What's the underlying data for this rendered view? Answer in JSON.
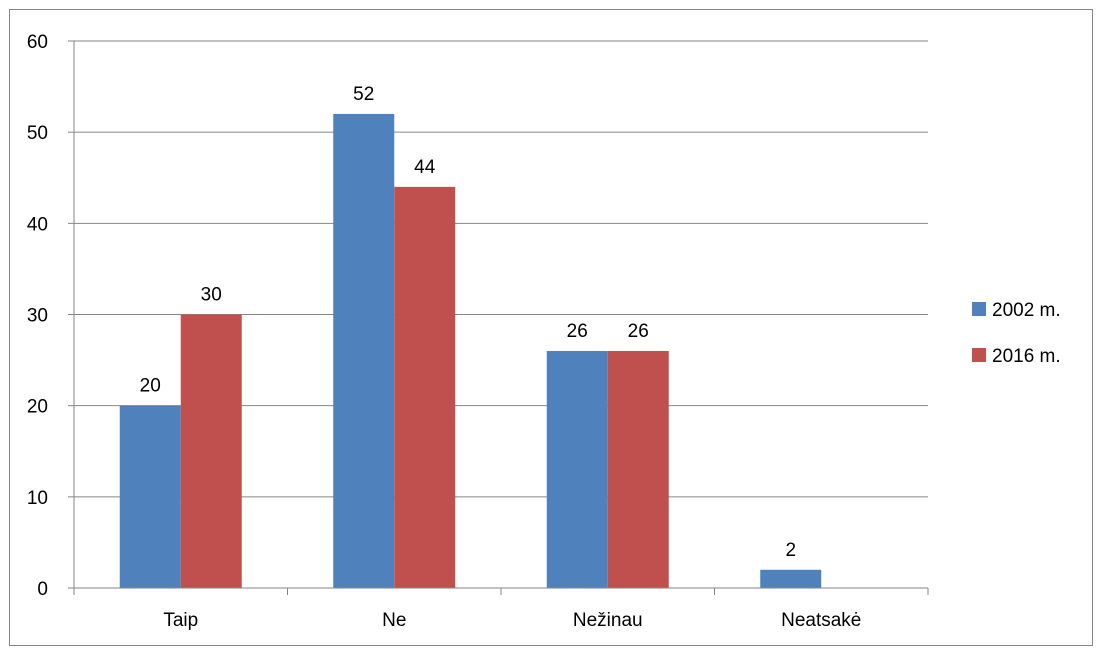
{
  "chart_data": {
    "type": "bar",
    "title": "",
    "xlabel": "",
    "ylabel": "",
    "categories": [
      "Taip",
      "Ne",
      "Nežinau",
      "Neatsakė"
    ],
    "series": [
      {
        "name": "2002 m.",
        "values": [
          20,
          52,
          26,
          2
        ],
        "color": "#4F81BD"
      },
      {
        "name": "2016 m.",
        "values": [
          30,
          44,
          26,
          null
        ],
        "color": "#C0504D"
      }
    ],
    "ylim": [
      0,
      60
    ],
    "yticks": [
      "0",
      "10",
      "20",
      "30",
      "40",
      "50",
      "60"
    ],
    "grid": true,
    "legend_position": "right",
    "data_labels": true
  }
}
